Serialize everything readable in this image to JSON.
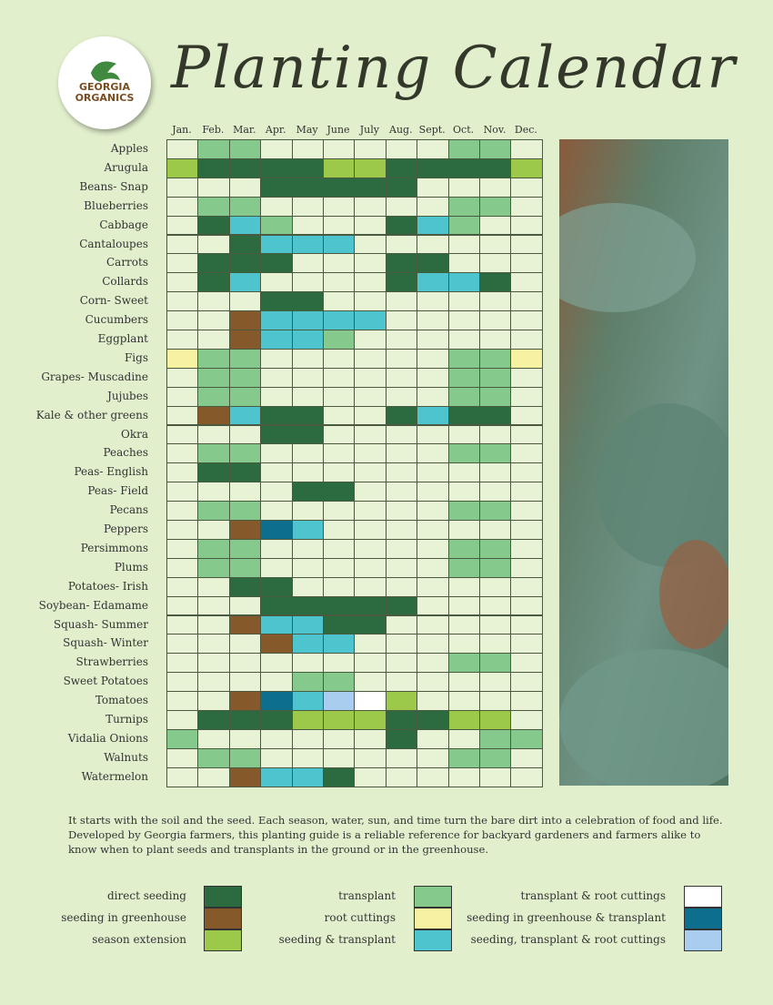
{
  "logo": {
    "line1": "GEORGIA",
    "line2": "ORGANICS"
  },
  "title": "Planting Calendar",
  "months": [
    "Jan.",
    "Feb.",
    "Mar.",
    "Apr.",
    "May",
    "June",
    "July",
    "Aug.",
    "Sept.",
    "Oct.",
    "Nov.",
    "Dec."
  ],
  "legend": [
    {
      "label": "direct seeding",
      "color": "#2c6a3f"
    },
    {
      "label": "seeding in greenhouse",
      "color": "#85592a"
    },
    {
      "label": "season extension",
      "color": "#9dc94a"
    },
    {
      "label": "transplant",
      "color": "#86c98d"
    },
    {
      "label": "root cuttings",
      "color": "#f6f2a2"
    },
    {
      "label": "seeding & transplant",
      "color": "#4ec4cf"
    },
    {
      "label": "transplant & root cuttings",
      "color": "#ffffff"
    },
    {
      "label": "seeding in greenhouse & transplant",
      "color": "#0d6e8d"
    },
    {
      "label": "seeding, transplant & root cuttings",
      "color": "#a9cdef"
    }
  ],
  "rows": [
    {
      "name": "Apples",
      "cells": [
        null,
        3,
        3,
        null,
        null,
        null,
        null,
        null,
        null,
        3,
        3,
        null
      ]
    },
    {
      "name": "Arugula",
      "cells": [
        2,
        0,
        0,
        0,
        0,
        2,
        2,
        0,
        0,
        0,
        0,
        2
      ]
    },
    {
      "name": "Beans- Snap",
      "cells": [
        null,
        null,
        null,
        0,
        0,
        0,
        0,
        0,
        null,
        null,
        null,
        null
      ]
    },
    {
      "name": "Blueberries",
      "cells": [
        null,
        3,
        3,
        null,
        null,
        null,
        null,
        null,
        null,
        3,
        3,
        null
      ]
    },
    {
      "name": "Cabbage",
      "cells": [
        null,
        0,
        5,
        3,
        null,
        null,
        null,
        0,
        5,
        3,
        null,
        null
      ]
    },
    {
      "name": "Cantaloupes",
      "cells": [
        null,
        null,
        0,
        5,
        5,
        5,
        null,
        null,
        null,
        null,
        null,
        null
      ]
    },
    {
      "name": "Carrots",
      "cells": [
        null,
        0,
        0,
        0,
        null,
        null,
        null,
        0,
        0,
        null,
        null,
        null
      ]
    },
    {
      "name": "Collards",
      "cells": [
        null,
        0,
        5,
        null,
        null,
        null,
        null,
        0,
        5,
        5,
        0,
        null
      ]
    },
    {
      "name": "Corn- Sweet",
      "cells": [
        null,
        null,
        null,
        0,
        0,
        null,
        null,
        null,
        null,
        null,
        null,
        null
      ]
    },
    {
      "name": "Cucumbers",
      "cells": [
        null,
        null,
        1,
        5,
        5,
        5,
        5,
        null,
        null,
        null,
        null,
        null
      ]
    },
    {
      "name": "Eggplant",
      "cells": [
        null,
        null,
        1,
        5,
        5,
        3,
        null,
        null,
        null,
        null,
        null,
        null
      ]
    },
    {
      "name": "Figs",
      "cells": [
        4,
        3,
        3,
        null,
        null,
        null,
        null,
        null,
        null,
        3,
        3,
        4
      ]
    },
    {
      "name": "Grapes- Muscadine",
      "cells": [
        null,
        3,
        3,
        null,
        null,
        null,
        null,
        null,
        null,
        3,
        3,
        null
      ]
    },
    {
      "name": "Jujubes",
      "cells": [
        null,
        3,
        3,
        null,
        null,
        null,
        null,
        null,
        null,
        3,
        3,
        null
      ]
    },
    {
      "name": "Kale & other greens",
      "cells": [
        null,
        1,
        5,
        0,
        0,
        null,
        null,
        0,
        5,
        0,
        0,
        null
      ]
    },
    {
      "name": "Okra",
      "cells": [
        null,
        null,
        null,
        0,
        0,
        null,
        null,
        null,
        null,
        null,
        null,
        null
      ]
    },
    {
      "name": "Peaches",
      "cells": [
        null,
        3,
        3,
        null,
        null,
        null,
        null,
        null,
        null,
        3,
        3,
        null
      ]
    },
    {
      "name": "Peas- English",
      "cells": [
        null,
        0,
        0,
        null,
        null,
        null,
        null,
        null,
        null,
        null,
        null,
        null
      ]
    },
    {
      "name": "Peas- Field",
      "cells": [
        null,
        null,
        null,
        null,
        0,
        0,
        null,
        null,
        null,
        null,
        null,
        null
      ]
    },
    {
      "name": "Pecans",
      "cells": [
        null,
        3,
        3,
        null,
        null,
        null,
        null,
        null,
        null,
        3,
        3,
        null
      ]
    },
    {
      "name": "Peppers",
      "cells": [
        null,
        null,
        1,
        7,
        5,
        null,
        null,
        null,
        null,
        null,
        null,
        null
      ]
    },
    {
      "name": "Persimmons",
      "cells": [
        null,
        3,
        3,
        null,
        null,
        null,
        null,
        null,
        null,
        3,
        3,
        null
      ]
    },
    {
      "name": "Plums",
      "cells": [
        null,
        3,
        3,
        null,
        null,
        null,
        null,
        null,
        null,
        3,
        3,
        null
      ]
    },
    {
      "name": "Potatoes- Irish",
      "cells": [
        null,
        null,
        0,
        0,
        null,
        null,
        null,
        null,
        null,
        null,
        null,
        null
      ]
    },
    {
      "name": "Soybean- Edamame",
      "cells": [
        null,
        null,
        null,
        0,
        0,
        0,
        0,
        0,
        null,
        null,
        null,
        null
      ]
    },
    {
      "name": "Squash- Summer",
      "cells": [
        null,
        null,
        1,
        5,
        5,
        0,
        0,
        null,
        null,
        null,
        null,
        null
      ]
    },
    {
      "name": "Squash- Winter",
      "cells": [
        null,
        null,
        null,
        1,
        5,
        5,
        null,
        null,
        null,
        null,
        null,
        null
      ]
    },
    {
      "name": "Strawberries",
      "cells": [
        null,
        null,
        null,
        null,
        null,
        null,
        null,
        null,
        null,
        3,
        3,
        null
      ]
    },
    {
      "name": "Sweet Potatoes",
      "cells": [
        null,
        null,
        null,
        null,
        3,
        3,
        null,
        null,
        null,
        null,
        null,
        null
      ]
    },
    {
      "name": "Tomatoes",
      "cells": [
        null,
        null,
        1,
        7,
        5,
        8,
        6,
        2,
        null,
        null,
        null,
        null
      ]
    },
    {
      "name": "Turnips",
      "cells": [
        null,
        0,
        0,
        0,
        2,
        2,
        2,
        0,
        0,
        2,
        2,
        null
      ]
    },
    {
      "name": "Vidalia Onions",
      "cells": [
        3,
        null,
        null,
        null,
        null,
        null,
        null,
        0,
        null,
        null,
        3,
        3
      ]
    },
    {
      "name": "Walnuts",
      "cells": [
        null,
        3,
        3,
        null,
        null,
        null,
        null,
        null,
        null,
        3,
        3,
        null
      ]
    },
    {
      "name": "Watermelon",
      "cells": [
        null,
        null,
        1,
        5,
        5,
        0,
        null,
        null,
        null,
        null,
        null,
        null
      ]
    }
  ],
  "description": "It starts with the soil and the seed. Each season, water, sun, and time turn the bare dirt into a celebration of food and life. Developed by Georgia farmers, this planting guide is a reliable reference for backyard gardeners and farmers alike to know when to plant seeds and transplants in the ground or in the greenhouse."
}
